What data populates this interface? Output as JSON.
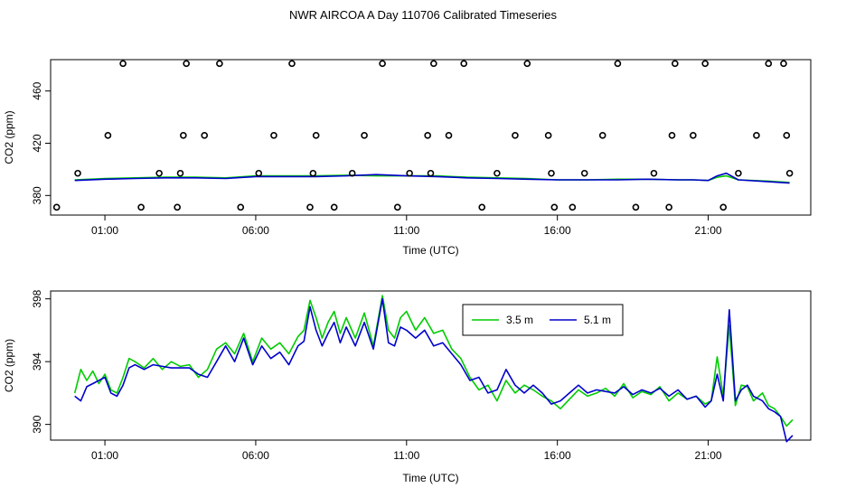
{
  "title": "NWR AIRCOA A  Day 110706  Calibrated Timeseries",
  "chart_data": [
    {
      "type": "line",
      "panel": "top",
      "xlabel": "Time (UTC)",
      "ylabel": "CO2 (ppm)",
      "xlim": [
        -0.8,
        24.4
      ],
      "ylim": [
        365,
        484
      ],
      "x_ticks": [
        1,
        6,
        11,
        16,
        21
      ],
      "x_tick_labels": [
        "01:00",
        "06:00",
        "11:00",
        "16:00",
        "21:00"
      ],
      "y_ticks": [
        380,
        420,
        460
      ],
      "y_tick_labels": [
        "380",
        "420",
        "460"
      ],
      "series": [
        {
          "color": "#00cc00",
          "x": [
            0.0,
            1.0,
            2.0,
            3.0,
            4.0,
            5.0,
            6.0,
            7.0,
            8.0,
            9.0,
            10.0,
            11.0,
            12.0,
            13.0,
            14.0,
            15.0,
            16.0,
            17.0,
            18.0,
            19.0,
            20.0,
            20.5,
            21.0,
            21.3,
            21.6,
            22.0,
            23.0,
            23.7
          ],
          "y": [
            392,
            393,
            393.5,
            394,
            394,
            393.5,
            395,
            395,
            395,
            395.5,
            395,
            395,
            395,
            394,
            393.5,
            393,
            392,
            392,
            392.5,
            392.5,
            392,
            392,
            391.5,
            394,
            395,
            392,
            391,
            390
          ]
        },
        {
          "color": "#0000cc",
          "x": [
            0.0,
            1.0,
            2.0,
            3.0,
            4.0,
            5.0,
            6.0,
            7.0,
            8.0,
            9.0,
            10.0,
            11.0,
            12.0,
            13.0,
            14.0,
            15.0,
            16.0,
            17.0,
            18.0,
            19.0,
            20.0,
            20.5,
            21.0,
            21.3,
            21.6,
            22.0,
            23.0,
            23.7
          ],
          "y": [
            391.5,
            392.5,
            393,
            393.5,
            393.5,
            393,
            394.5,
            394.5,
            394.5,
            395,
            396,
            395,
            394.5,
            393.5,
            393,
            392.5,
            392,
            392,
            392,
            392.5,
            392,
            392,
            391.5,
            395,
            397,
            392,
            390.5,
            389.5
          ]
        }
      ],
      "markers": {
        "x": [
          -0.6,
          0.1,
          1.1,
          1.6,
          2.2,
          2.8,
          3.4,
          3.5,
          3.6,
          3.7,
          4.3,
          4.8,
          5.5,
          6.1,
          6.6,
          7.2,
          7.8,
          7.9,
          8.0,
          8.6,
          9.2,
          9.6,
          10.2,
          10.7,
          11.1,
          11.7,
          11.8,
          11.9,
          12.4,
          12.9,
          13.5,
          14.0,
          14.6,
          15.0,
          15.7,
          15.8,
          15.9,
          16.5,
          16.9,
          17.5,
          18.0,
          18.6,
          19.2,
          19.7,
          19.8,
          19.9,
          20.5,
          20.9,
          21.5,
          22.0,
          22.6,
          23.0,
          23.5,
          23.6,
          23.7
        ],
        "y": [
          371,
          397,
          426,
          481,
          371,
          397,
          371,
          397,
          426,
          481,
          426,
          481,
          371,
          397,
          426,
          481,
          371,
          397,
          426,
          371,
          397,
          426,
          481,
          371,
          397,
          426,
          397,
          481,
          426,
          481,
          371,
          397,
          426,
          481,
          426,
          397,
          371,
          371,
          397,
          426,
          481,
          371,
          397,
          371,
          426,
          481,
          426,
          481,
          371,
          397,
          426,
          481,
          481,
          426,
          397
        ]
      }
    },
    {
      "type": "line",
      "panel": "bottom",
      "xlabel": "Time (UTC)",
      "ylabel": "CO2 (ppm)",
      "xlim": [
        -0.8,
        24.4
      ],
      "ylim": [
        389,
        398.5
      ],
      "x_ticks": [
        1,
        6,
        11,
        16,
        21
      ],
      "x_tick_labels": [
        "01:00",
        "06:00",
        "11:00",
        "16:00",
        "21:00"
      ],
      "y_ticks": [
        390,
        394,
        398
      ],
      "y_tick_labels": [
        "390",
        "394",
        "398"
      ],
      "legend": {
        "placement": "top-center-right"
      },
      "series": [
        {
          "name": "3.5 m",
          "color": "#00cc00",
          "x": [
            0.0,
            0.2,
            0.4,
            0.6,
            0.8,
            1.0,
            1.2,
            1.4,
            1.6,
            1.8,
            2.0,
            2.3,
            2.6,
            2.9,
            3.2,
            3.5,
            3.8,
            4.1,
            4.4,
            4.7,
            5.0,
            5.3,
            5.6,
            5.9,
            6.2,
            6.5,
            6.8,
            7.1,
            7.4,
            7.6,
            7.8,
            8.0,
            8.2,
            8.4,
            8.6,
            8.8,
            9.0,
            9.3,
            9.6,
            9.9,
            10.2,
            10.4,
            10.6,
            10.8,
            11.0,
            11.3,
            11.6,
            11.9,
            12.2,
            12.5,
            12.8,
            13.1,
            13.4,
            13.7,
            14.0,
            14.3,
            14.6,
            14.9,
            15.2,
            15.5,
            15.8,
            16.1,
            16.4,
            16.7,
            17.0,
            17.3,
            17.6,
            17.9,
            18.2,
            18.5,
            18.8,
            19.1,
            19.4,
            19.7,
            20.0,
            20.3,
            20.6,
            20.9,
            21.1,
            21.3,
            21.5,
            21.7,
            21.9,
            22.1,
            22.3,
            22.5,
            22.8,
            23.0,
            23.2,
            23.4,
            23.6,
            23.8
          ],
          "y": [
            392.0,
            393.5,
            392.8,
            393.4,
            392.6,
            393.2,
            392.2,
            392.0,
            393.0,
            394.2,
            394.0,
            393.6,
            394.2,
            393.5,
            394.0,
            393.7,
            393.8,
            393.0,
            393.5,
            394.8,
            395.2,
            394.5,
            395.8,
            394.0,
            395.5,
            394.8,
            395.2,
            394.5,
            395.6,
            396.0,
            397.9,
            396.8,
            395.5,
            396.5,
            397.2,
            395.8,
            396.8,
            395.5,
            397.1,
            395.0,
            398.2,
            396.0,
            395.5,
            396.8,
            397.2,
            396.0,
            396.8,
            395.8,
            396.0,
            394.8,
            394.2,
            393.0,
            392.2,
            392.5,
            391.5,
            392.8,
            392.0,
            392.5,
            392.2,
            391.8,
            391.5,
            391.0,
            391.6,
            392.2,
            391.8,
            392.0,
            392.3,
            391.8,
            392.6,
            391.7,
            392.1,
            391.9,
            392.4,
            391.5,
            392.0,
            391.6,
            391.8,
            391.3,
            391.5,
            394.3,
            391.8,
            396.3,
            391.2,
            392.5,
            392.4,
            391.5,
            392.0,
            391.2,
            391.0,
            390.5,
            389.9,
            390.3
          ]
        },
        {
          "name": "5.1 m",
          "color": "#0000cc",
          "x": [
            0.0,
            0.2,
            0.4,
            0.6,
            0.8,
            1.0,
            1.2,
            1.4,
            1.6,
            1.8,
            2.0,
            2.3,
            2.6,
            2.9,
            3.2,
            3.5,
            3.8,
            4.1,
            4.4,
            4.7,
            5.0,
            5.3,
            5.6,
            5.9,
            6.2,
            6.5,
            6.8,
            7.1,
            7.4,
            7.6,
            7.8,
            8.0,
            8.2,
            8.4,
            8.6,
            8.8,
            9.0,
            9.3,
            9.6,
            9.9,
            10.2,
            10.4,
            10.6,
            10.8,
            11.0,
            11.3,
            11.6,
            11.9,
            12.2,
            12.5,
            12.8,
            13.1,
            13.4,
            13.7,
            14.0,
            14.3,
            14.6,
            14.9,
            15.2,
            15.5,
            15.8,
            16.1,
            16.4,
            16.7,
            17.0,
            17.3,
            17.6,
            17.9,
            18.2,
            18.5,
            18.8,
            19.1,
            19.4,
            19.7,
            20.0,
            20.3,
            20.6,
            20.9,
            21.1,
            21.3,
            21.5,
            21.7,
            21.9,
            22.1,
            22.3,
            22.5,
            22.8,
            23.0,
            23.2,
            23.4,
            23.6,
            23.8
          ],
          "y": [
            391.8,
            391.5,
            392.4,
            392.6,
            392.8,
            393.0,
            392.0,
            391.8,
            392.5,
            393.6,
            393.8,
            393.5,
            393.8,
            393.7,
            393.6,
            393.6,
            393.6,
            393.2,
            393.0,
            394.0,
            395.0,
            394.0,
            395.5,
            393.8,
            395.0,
            394.2,
            394.6,
            393.8,
            395.0,
            395.3,
            397.5,
            396.0,
            395.0,
            395.8,
            396.5,
            395.2,
            396.2,
            395.0,
            396.5,
            394.8,
            398.0,
            395.2,
            395.0,
            396.2,
            396.0,
            395.5,
            396.0,
            395.0,
            395.2,
            394.5,
            393.8,
            392.8,
            393.0,
            392.0,
            392.2,
            393.5,
            392.5,
            392.0,
            392.5,
            392.0,
            391.3,
            391.5,
            392.0,
            392.5,
            392.0,
            392.2,
            392.1,
            392.0,
            392.4,
            391.9,
            392.2,
            392.0,
            392.3,
            391.8,
            392.2,
            391.6,
            391.8,
            391.1,
            391.5,
            393.2,
            391.5,
            397.3,
            391.5,
            392.2,
            392.5,
            391.8,
            391.5,
            391.0,
            390.8,
            390.5,
            388.9,
            389.3
          ]
        }
      ]
    }
  ]
}
